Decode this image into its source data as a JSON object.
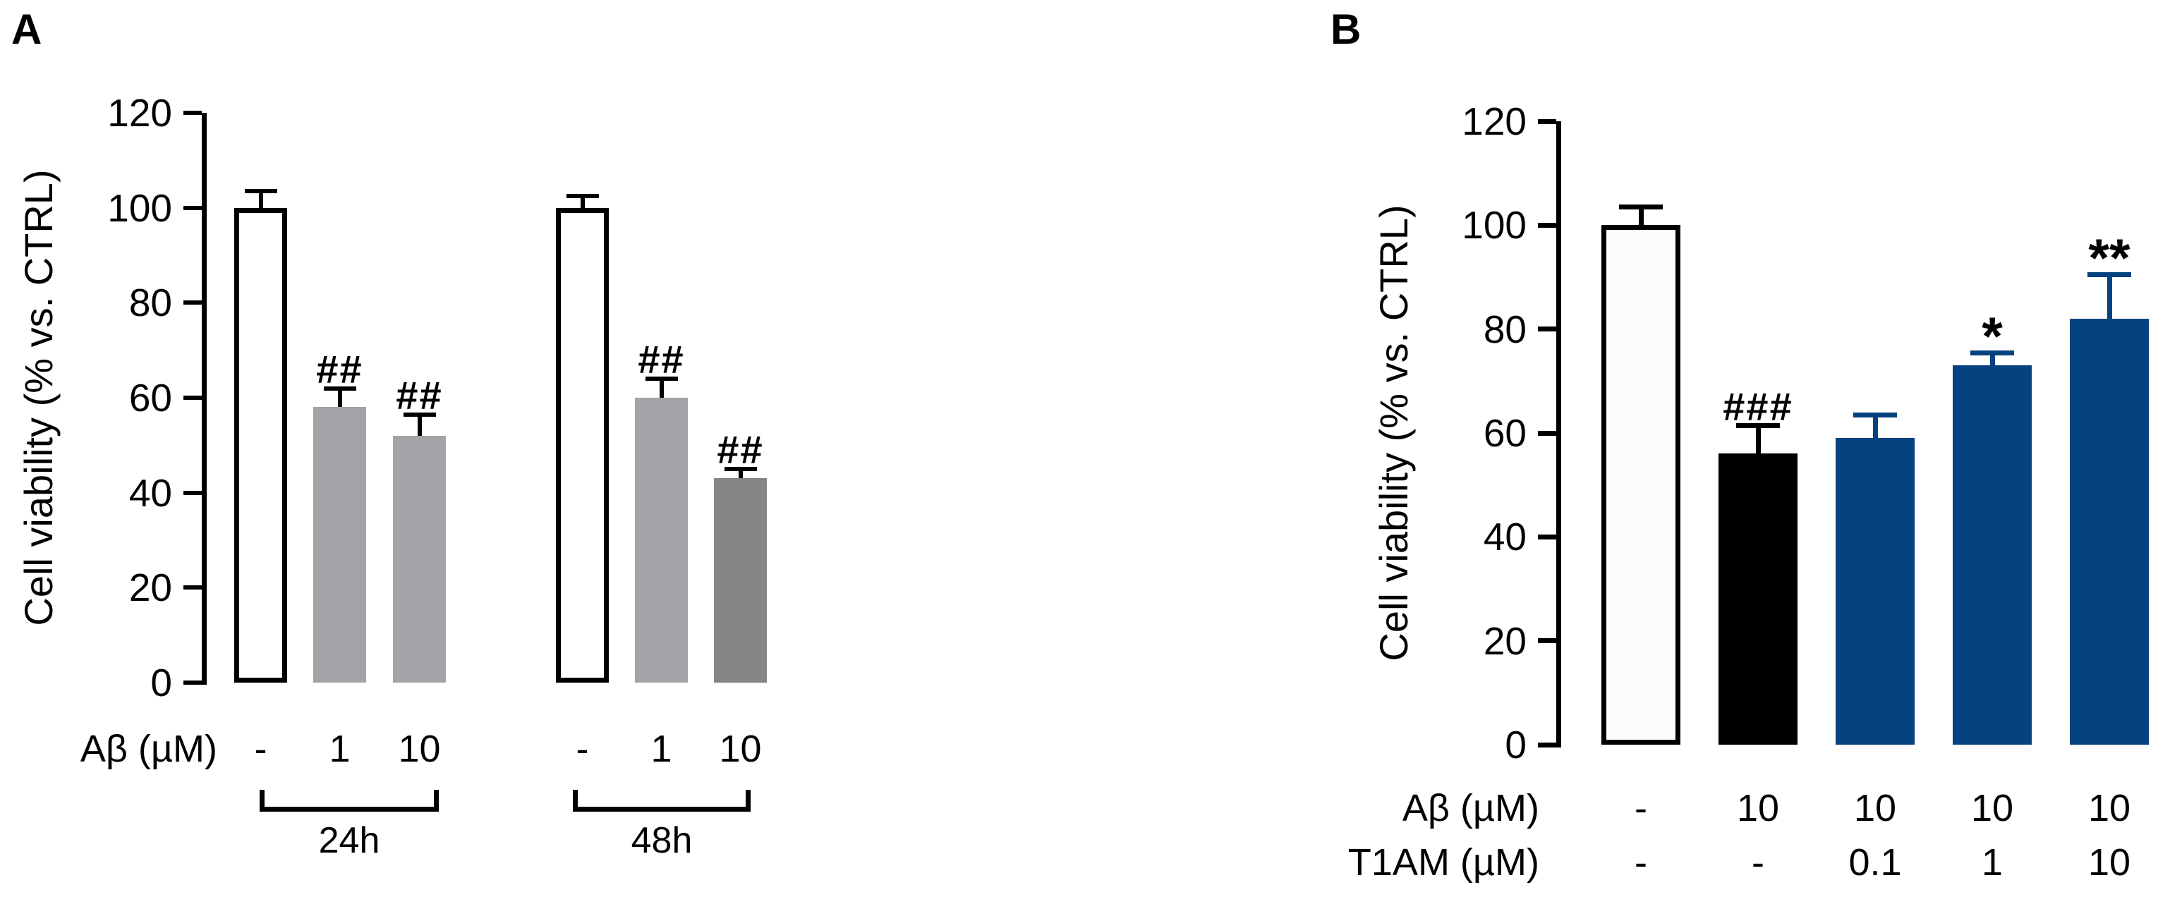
{
  "figure": {
    "background": "#ffffff",
    "text_color": "#000000"
  },
  "chart_data": [
    {
      "id": "panel_A",
      "panel_label": "A",
      "type": "bar",
      "title": "",
      "ylabel": "Cell viability (% vs. CTRL)",
      "xlabel": "",
      "x_row_label": "Aβ (µM)",
      "ylim": [
        0,
        120
      ],
      "yticks": [
        0,
        20,
        40,
        60,
        80,
        100,
        120
      ],
      "grid": false,
      "legend": "none",
      "error_bars": "upper SEM whiskers with caps",
      "groups": [
        {
          "label": "24h",
          "bars": [
            {
              "x_value": "-",
              "value": 100,
              "error": 3,
              "fill": "#ffffff",
              "outlined": true,
              "annotation": "",
              "error_color": "#000000"
            },
            {
              "x_value": "1",
              "value": 58,
              "error": 3.5,
              "fill": "#a2a4a7",
              "outlined": false,
              "annotation": "##",
              "error_color": "#000000"
            },
            {
              "x_value": "10",
              "value": 52,
              "error": 4,
              "fill": "#a2a4a7",
              "outlined": false,
              "annotation": "##",
              "error_color": "#000000"
            }
          ]
        },
        {
          "label": "48h",
          "bars": [
            {
              "x_value": "-",
              "value": 100,
              "error": 2,
              "fill": "#ffffff",
              "outlined": true,
              "annotation": "",
              "error_color": "#000000"
            },
            {
              "x_value": "1",
              "value": 60,
              "error": 3.5,
              "fill": "#a2a4a7",
              "outlined": false,
              "annotation": "##",
              "error_color": "#000000"
            },
            {
              "x_value": "10",
              "value": 43,
              "error": 1.5,
              "fill": "#838587",
              "outlined": false,
              "annotation": "##",
              "error_color": "#000000"
            }
          ]
        }
      ]
    },
    {
      "id": "panel_B",
      "panel_label": "B",
      "type": "bar",
      "title": "",
      "ylabel": "Cell viability (% vs. CTRL)",
      "xlabel": "",
      "row1_label": "Aβ (µM)",
      "row2_label": "T1AM (µM)",
      "ylim": [
        0,
        120
      ],
      "yticks": [
        0,
        20,
        40,
        60,
        80,
        100,
        120
      ],
      "grid": false,
      "legend": "none",
      "error_bars": "upper SEM whiskers with caps",
      "bars": [
        {
          "ab": "-",
          "t1am": "-",
          "value": 100,
          "error": 3,
          "fill": "#fcfcfc",
          "outlined": true,
          "annotation": "",
          "error_color": "#000000"
        },
        {
          "ab": "10",
          "t1am": "-",
          "value": 56,
          "error": 5,
          "fill": "#000000",
          "outlined": false,
          "annotation": "###",
          "error_color": "#000000"
        },
        {
          "ab": "10",
          "t1am": "0.1",
          "value": 59,
          "error": 4,
          "fill": "#05427f",
          "outlined": false,
          "annotation": "",
          "error_color": "#05427f"
        },
        {
          "ab": "10",
          "t1am": "1",
          "value": 73,
          "error": 2,
          "fill": "#05427f",
          "outlined": false,
          "annotation": "*",
          "error_color": "#05427f"
        },
        {
          "ab": "10",
          "t1am": "10",
          "value": 82,
          "error": 8,
          "fill": "#05427f",
          "outlined": false,
          "annotation": "**",
          "error_color": "#05427f"
        }
      ]
    }
  ]
}
